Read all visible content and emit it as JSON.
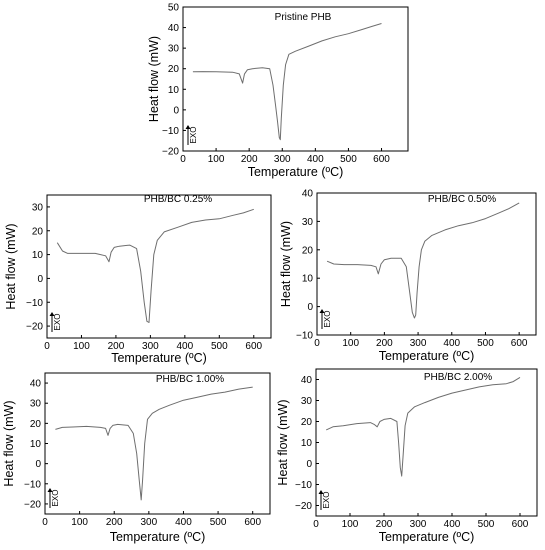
{
  "chart_data": [
    {
      "type": "line",
      "title": "Pristine PHB",
      "xlabel": "Temperature (ºC)",
      "ylabel": "Heat flow (mW)",
      "exo_label": "EXO",
      "xlim": [
        0,
        680
      ],
      "ylim": [
        -20,
        50
      ],
      "xticks": [
        0,
        100,
        200,
        300,
        400,
        500,
        600
      ],
      "yticks": [
        -20,
        -10,
        0,
        10,
        20,
        30,
        40,
        50
      ],
      "grid": false,
      "series": [
        {
          "color": "#6e6e6e",
          "x": [
            30,
            60,
            100,
            150,
            170,
            180,
            186,
            195,
            210,
            240,
            262,
            272,
            280,
            286,
            291,
            294,
            297,
            303,
            310,
            320,
            340,
            380,
            420,
            460,
            500,
            540,
            570,
            600
          ],
          "y": [
            18.5,
            18.6,
            18.5,
            18.3,
            17.5,
            13.0,
            17.5,
            19.5,
            20.0,
            20.5,
            20.0,
            12.0,
            2.0,
            -6.0,
            -13.5,
            -14.5,
            -4.0,
            12.0,
            22.0,
            27.0,
            28.5,
            31.0,
            33.5,
            35.5,
            37.0,
            39.0,
            40.5,
            42.0
          ]
        }
      ]
    },
    {
      "type": "line",
      "title": "PHB/BC 0.25%",
      "xlabel": "Temperature (ºC)",
      "ylabel": "Heat flow (mW)",
      "exo_label": "EXO",
      "xlim": [
        0,
        650
      ],
      "ylim": [
        -25,
        35
      ],
      "xticks": [
        0,
        100,
        200,
        300,
        400,
        500,
        600
      ],
      "yticks": [
        -20,
        -10,
        0,
        10,
        20,
        30
      ],
      "grid": false,
      "series": [
        {
          "color": "#6e6e6e",
          "x": [
            30,
            45,
            60,
            100,
            140,
            170,
            180,
            186,
            195,
            210,
            240,
            260,
            272,
            282,
            290,
            296,
            302,
            310,
            320,
            340,
            380,
            420,
            460,
            500,
            540,
            570,
            600
          ],
          "y": [
            15.0,
            11.5,
            10.5,
            10.5,
            10.5,
            9.5,
            7.0,
            11.0,
            13.0,
            13.5,
            14.0,
            12.5,
            3.0,
            -10.0,
            -18.0,
            -18.5,
            -5.0,
            10.0,
            16.0,
            19.5,
            21.5,
            23.5,
            24.5,
            25.0,
            26.5,
            27.5,
            29.0
          ]
        }
      ]
    },
    {
      "type": "line",
      "title": "PHB/BC 0.50%",
      "xlabel": "Temperature (ºC)",
      "ylabel": "Heat flow (mW)",
      "exo_label": "EXO",
      "xlim": [
        0,
        650
      ],
      "ylim": [
        -10,
        40
      ],
      "xticks": [
        0,
        100,
        200,
        300,
        400,
        500,
        600
      ],
      "yticks": [
        -10,
        0,
        10,
        20,
        30,
        40
      ],
      "grid": false,
      "series": [
        {
          "color": "#6e6e6e",
          "x": [
            30,
            50,
            80,
            120,
            160,
            175,
            182,
            190,
            200,
            220,
            250,
            265,
            275,
            283,
            289,
            293,
            297,
            303,
            310,
            320,
            340,
            380,
            420,
            460,
            500,
            540,
            570,
            600
          ],
          "y": [
            16.0,
            15.0,
            14.8,
            14.8,
            14.5,
            14.0,
            11.5,
            15.0,
            16.5,
            17.0,
            17.0,
            14.0,
            5.0,
            -2.0,
            -4.0,
            -3.0,
            5.0,
            14.0,
            20.0,
            23.0,
            25.0,
            27.0,
            28.5,
            29.5,
            31.0,
            33.0,
            34.5,
            36.5
          ]
        }
      ]
    },
    {
      "type": "line",
      "title": "PHB/BC 1.00%",
      "xlabel": "Temperature (ºC)",
      "ylabel": "Heat flow (mW)",
      "exo_label": "EXO",
      "xlim": [
        0,
        650
      ],
      "ylim": [
        -25,
        45
      ],
      "xticks": [
        0,
        100,
        200,
        300,
        400,
        500,
        600
      ],
      "yticks": [
        -20,
        -10,
        0,
        10,
        20,
        30,
        40
      ],
      "grid": false,
      "series": [
        {
          "color": "#6e6e6e",
          "x": [
            30,
            50,
            80,
            120,
            160,
            175,
            182,
            188,
            196,
            210,
            240,
            255,
            265,
            272,
            278,
            282,
            288,
            296,
            310,
            330,
            360,
            400,
            440,
            480,
            520,
            560,
            600
          ],
          "y": [
            17.0,
            18.0,
            18.2,
            18.5,
            18.0,
            17.5,
            14.0,
            17.5,
            19.0,
            19.5,
            19.0,
            15.0,
            5.0,
            -8.0,
            -18.0,
            -8.0,
            10.0,
            22.0,
            25.0,
            27.0,
            29.0,
            31.5,
            33.0,
            34.5,
            35.5,
            37.0,
            38.0
          ]
        }
      ]
    },
    {
      "type": "line",
      "title": "PHB/BC 2.00%",
      "xlabel": "Temperature (ºC)",
      "ylabel": "Heat flow (mW)",
      "exo_label": "EXO",
      "xlim": [
        0,
        650
      ],
      "ylim": [
        -25,
        45
      ],
      "xticks": [
        0,
        100,
        200,
        300,
        400,
        500,
        600
      ],
      "yticks": [
        -20,
        -10,
        0,
        10,
        20,
        30,
        40
      ],
      "grid": false,
      "series": [
        {
          "color": "#6e6e6e",
          "x": [
            30,
            50,
            80,
            120,
            160,
            172,
            180,
            188,
            200,
            220,
            238,
            243,
            248,
            252,
            256,
            262,
            270,
            290,
            320,
            360,
            400,
            440,
            480,
            520,
            560,
            580,
            600
          ],
          "y": [
            16.0,
            17.5,
            18.0,
            19.0,
            19.5,
            18.5,
            17.5,
            20.0,
            21.0,
            21.5,
            20.0,
            10.0,
            -2.0,
            -6.0,
            3.0,
            18.0,
            24.0,
            27.0,
            29.0,
            31.5,
            33.5,
            35.0,
            36.5,
            37.5,
            38.0,
            39.0,
            41.0
          ]
        }
      ]
    }
  ]
}
